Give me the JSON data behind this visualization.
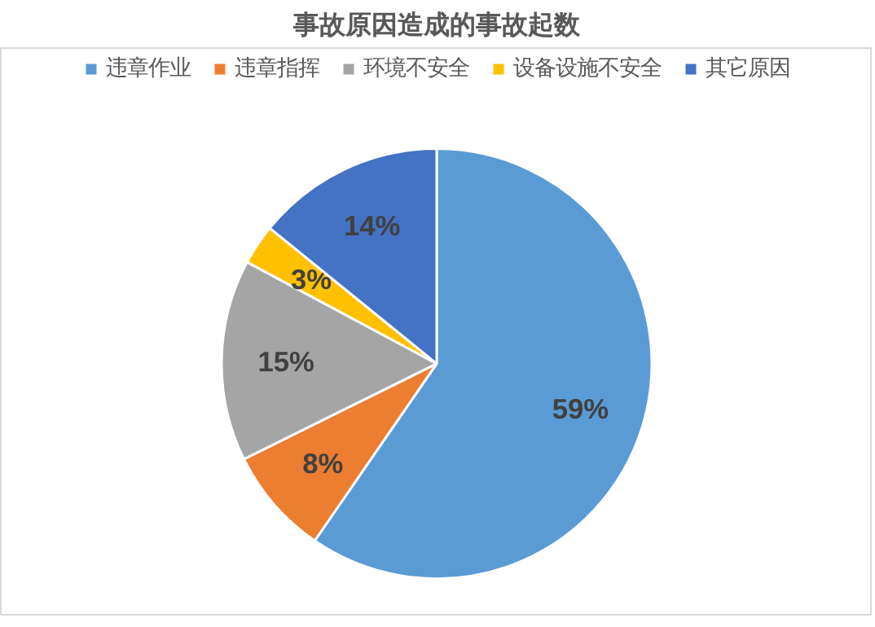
{
  "chart_data": {
    "type": "pie",
    "title": "事故原因造成的事故起数",
    "categories": [
      "违章作业",
      "违章指挥",
      "环境不安全",
      "设备设施不安全",
      "其它原因"
    ],
    "values": [
      59,
      8,
      15,
      3,
      14
    ],
    "colors": [
      "#5b9bd5",
      "#ed7d31",
      "#a5a5a5",
      "#ffc000",
      "#4472c4"
    ],
    "value_labels": [
      "59%",
      "8%",
      "15%",
      "3%",
      "14%"
    ],
    "legend": "top"
  }
}
